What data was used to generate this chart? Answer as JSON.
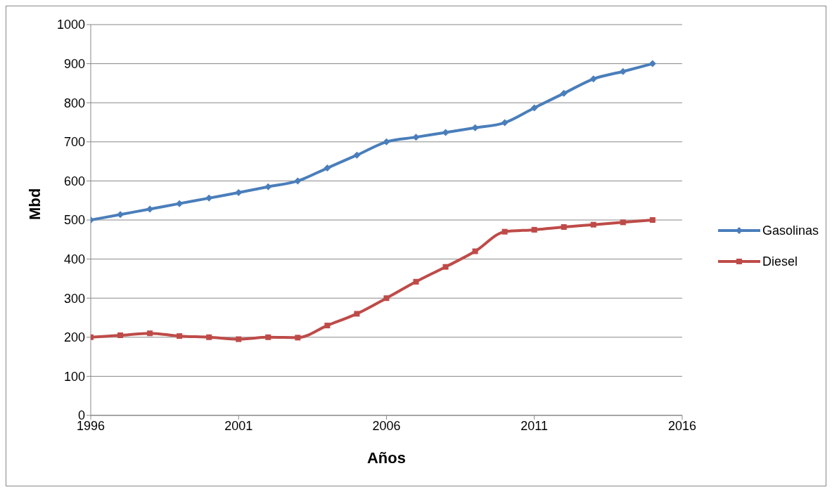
{
  "chart_data": {
    "type": "line",
    "xlabel": "Años",
    "ylabel": "Mbd",
    "x": [
      1996,
      1997,
      1998,
      1999,
      2000,
      2001,
      2002,
      2003,
      2004,
      2005,
      2006,
      2007,
      2008,
      2009,
      2010,
      2011,
      2012,
      2013,
      2014,
      2015
    ],
    "xlim": [
      1996,
      2016
    ],
    "xticks": [
      1996,
      2001,
      2006,
      2011,
      2016
    ],
    "ylim": [
      0,
      1000
    ],
    "yticks": [
      0,
      100,
      200,
      300,
      400,
      500,
      600,
      700,
      800,
      900,
      1000
    ],
    "grid": "y",
    "legend": "right",
    "line_style": "solid",
    "series": [
      {
        "name": "Gasolinas",
        "color": "#4a7ebb",
        "marker": "diamond",
        "values": [
          500,
          514,
          528,
          542,
          556,
          570,
          585,
          600,
          633,
          666,
          700,
          712,
          724,
          736,
          749,
          787,
          824,
          861,
          880,
          900
        ]
      },
      {
        "name": "Diesel",
        "color": "#be4b48",
        "marker": "square",
        "values": [
          200,
          205,
          210,
          203,
          200,
          195,
          200,
          199,
          230,
          260,
          300,
          342,
          380,
          420,
          470,
          475,
          482,
          488,
          494,
          500
        ]
      }
    ]
  }
}
